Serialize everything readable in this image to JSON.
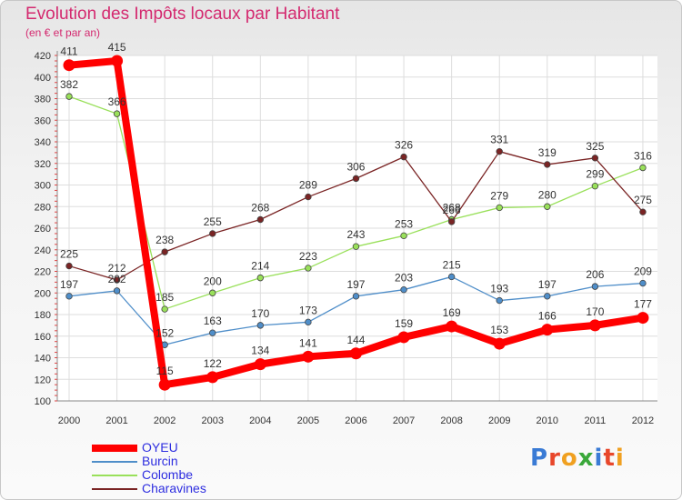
{
  "header": {
    "title": "Evolution des Impôts locaux par Habitant",
    "subtitle": "(en € et par an)"
  },
  "logo": {
    "text": "Proxiti"
  },
  "chart_data": {
    "type": "line",
    "categories": [
      "2000",
      "2001",
      "2002",
      "2003",
      "2004",
      "2005",
      "2006",
      "2007",
      "2008",
      "2009",
      "2010",
      "2011",
      "2012"
    ],
    "ylim": [
      100,
      420
    ],
    "yticks": [
      100,
      120,
      140,
      160,
      180,
      200,
      220,
      240,
      260,
      280,
      300,
      320,
      340,
      360,
      380,
      400,
      420
    ],
    "grid": true,
    "legend_position": "bottom-left",
    "series": [
      {
        "name": "OYEU",
        "color": "#ff0000",
        "emphasis": true,
        "values": [
          411,
          415,
          115,
          122,
          134,
          141,
          144,
          159,
          169,
          153,
          166,
          170,
          177
        ]
      },
      {
        "name": "Burcin",
        "color": "#4f8ec9",
        "emphasis": false,
        "values": [
          197,
          202,
          152,
          163,
          170,
          173,
          197,
          203,
          215,
          193,
          197,
          206,
          209
        ]
      },
      {
        "name": "Colombe",
        "color": "#99e05a",
        "emphasis": false,
        "values": [
          382,
          366,
          185,
          200,
          214,
          223,
          243,
          253,
          268,
          279,
          280,
          299,
          316
        ]
      },
      {
        "name": "Charavines",
        "color": "#7a2424",
        "emphasis": false,
        "values": [
          225,
          212,
          238,
          255,
          268,
          289,
          306,
          326,
          266,
          331,
          319,
          325,
          275
        ]
      }
    ]
  }
}
